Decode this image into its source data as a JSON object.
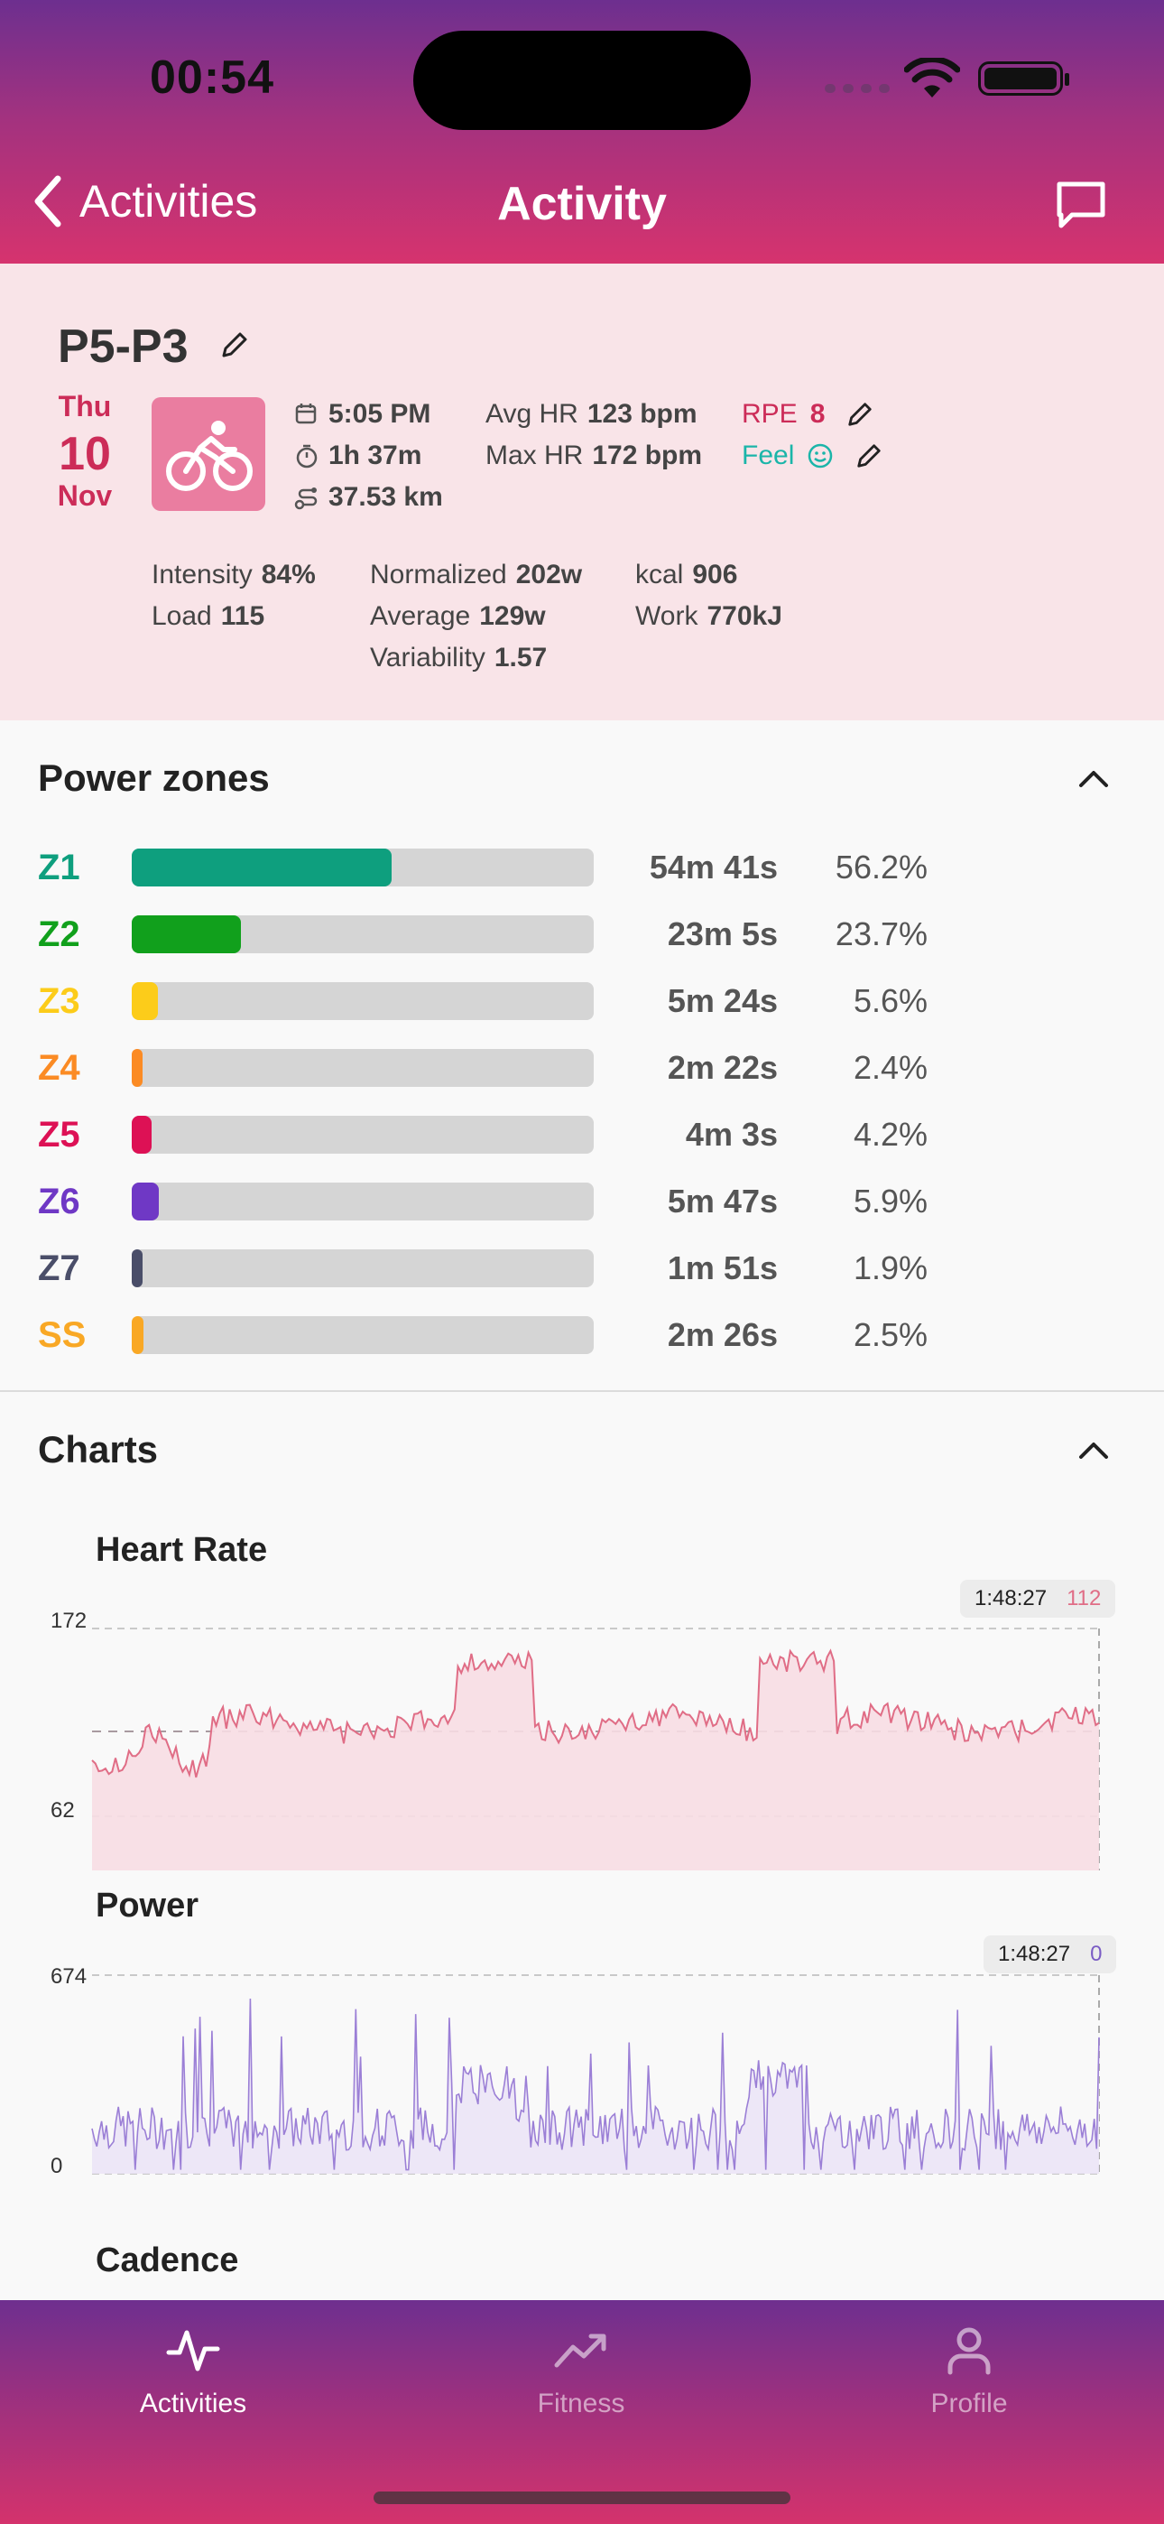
{
  "status_bar": {
    "time": "00:54"
  },
  "nav": {
    "back_label": "Activities",
    "title": "Activity",
    "comment_icon": "chat-bubble-icon"
  },
  "activity": {
    "name": "P5-P3",
    "date": {
      "dow": "Thu",
      "day": "10",
      "month": "Nov"
    },
    "sport_icon": "bicycle-icon",
    "start_time": "5:05 PM",
    "duration": "1h 37m",
    "distance": "37.53 km",
    "avg_hr_label": "Avg HR",
    "avg_hr": "123 bpm",
    "max_hr_label": "Max HR",
    "max_hr": "172 bpm",
    "rpe_label": "RPE",
    "rpe": "8",
    "feel_label": "Feel",
    "intensity_label": "Intensity",
    "intensity": "84%",
    "load_label": "Load",
    "load": "115",
    "normalized_label": "Normalized",
    "normalized": "202w",
    "average_label": "Average",
    "average": "129w",
    "variability_label": "Variability",
    "variability": "1.57",
    "kcal_label": "kcal",
    "kcal": "906",
    "work_label": "Work",
    "work": "770kJ"
  },
  "power_zones": {
    "title": "Power zones",
    "zones": [
      {
        "label": "Z1",
        "time": "54m 41s",
        "pct": "56.2%",
        "fraction": 0.562,
        "color": "#0e9f7e"
      },
      {
        "label": "Z2",
        "time": "23m 5s",
        "pct": "23.7%",
        "fraction": 0.237,
        "color": "#11a01c"
      },
      {
        "label": "Z3",
        "time": "5m 24s",
        "pct": "5.6%",
        "fraction": 0.056,
        "color": "#fccc1a"
      },
      {
        "label": "Z4",
        "time": "2m 22s",
        "pct": "2.4%",
        "fraction": 0.024,
        "color": "#fb8b24"
      },
      {
        "label": "Z5",
        "time": "4m 3s",
        "pct": "4.2%",
        "fraction": 0.042,
        "color": "#dd1155"
      },
      {
        "label": "Z6",
        "time": "5m 47s",
        "pct": "5.9%",
        "fraction": 0.059,
        "color": "#6f38c5"
      },
      {
        "label": "Z7",
        "time": "1m 51s",
        "pct": "1.9%",
        "fraction": 0.019,
        "color": "#4a4e69"
      },
      {
        "label": "SS",
        "time": "2m 26s",
        "pct": "2.5%",
        "fraction": 0.025,
        "color": "#f9a825"
      }
    ]
  },
  "charts": {
    "title": "Charts",
    "heart_rate": {
      "title": "Heart Rate",
      "y_max": "172",
      "y_min": "62",
      "tip_time": "1:48:27",
      "tip_value": "112",
      "color": "#e06d86"
    },
    "power": {
      "title": "Power",
      "y_max": "674",
      "y_min": "0",
      "tip_time": "1:48:27",
      "tip_value": "0",
      "color": "#9b7fd6"
    },
    "cadence": {
      "title": "Cadence"
    }
  },
  "chart_data": [
    {
      "type": "area",
      "title": "Heart Rate",
      "ylim": [
        62,
        172
      ],
      "x": "time 0:00–1:48:27",
      "annotations": [
        "172",
        "62"
      ]
    },
    {
      "type": "area",
      "title": "Power",
      "ylim": [
        0,
        674
      ],
      "x": "time 0:00–1:48:27",
      "annotations": [
        "674",
        "0"
      ]
    }
  ],
  "tabbar": {
    "tabs": [
      {
        "label": "Activities",
        "icon": "activity-pulse-icon"
      },
      {
        "label": "Fitness",
        "icon": "trend-up-icon"
      },
      {
        "label": "Profile",
        "icon": "person-icon"
      }
    ]
  }
}
